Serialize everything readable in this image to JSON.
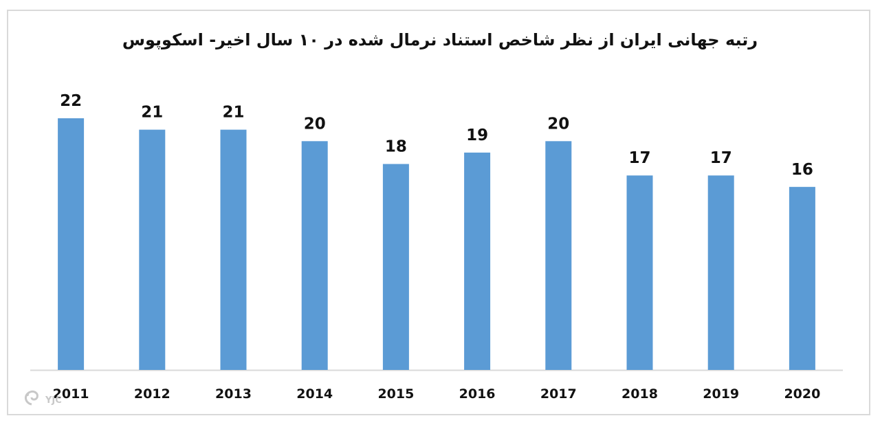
{
  "chart_data": {
    "type": "bar",
    "title": "رتبه جهانی ایران از نظر شاخص استناد نرمال شده در ۱۰ سال اخیر- اسکوپوس",
    "categories": [
      "2011",
      "2012",
      "2013",
      "2014",
      "2015",
      "2016",
      "2017",
      "2018",
      "2019",
      "2020"
    ],
    "values": [
      22,
      21,
      21,
      20,
      18,
      19,
      20,
      17,
      17,
      16
    ],
    "xlabel": "",
    "ylabel": "",
    "ylim": [
      0,
      22
    ],
    "grid": false,
    "legend": "none",
    "bar_color": "#5b9bd5",
    "axis_color": "#d9d9d9",
    "label_color": "#111111"
  },
  "watermark": {
    "text": "YJC",
    "icon": "yjc-logo-icon"
  }
}
